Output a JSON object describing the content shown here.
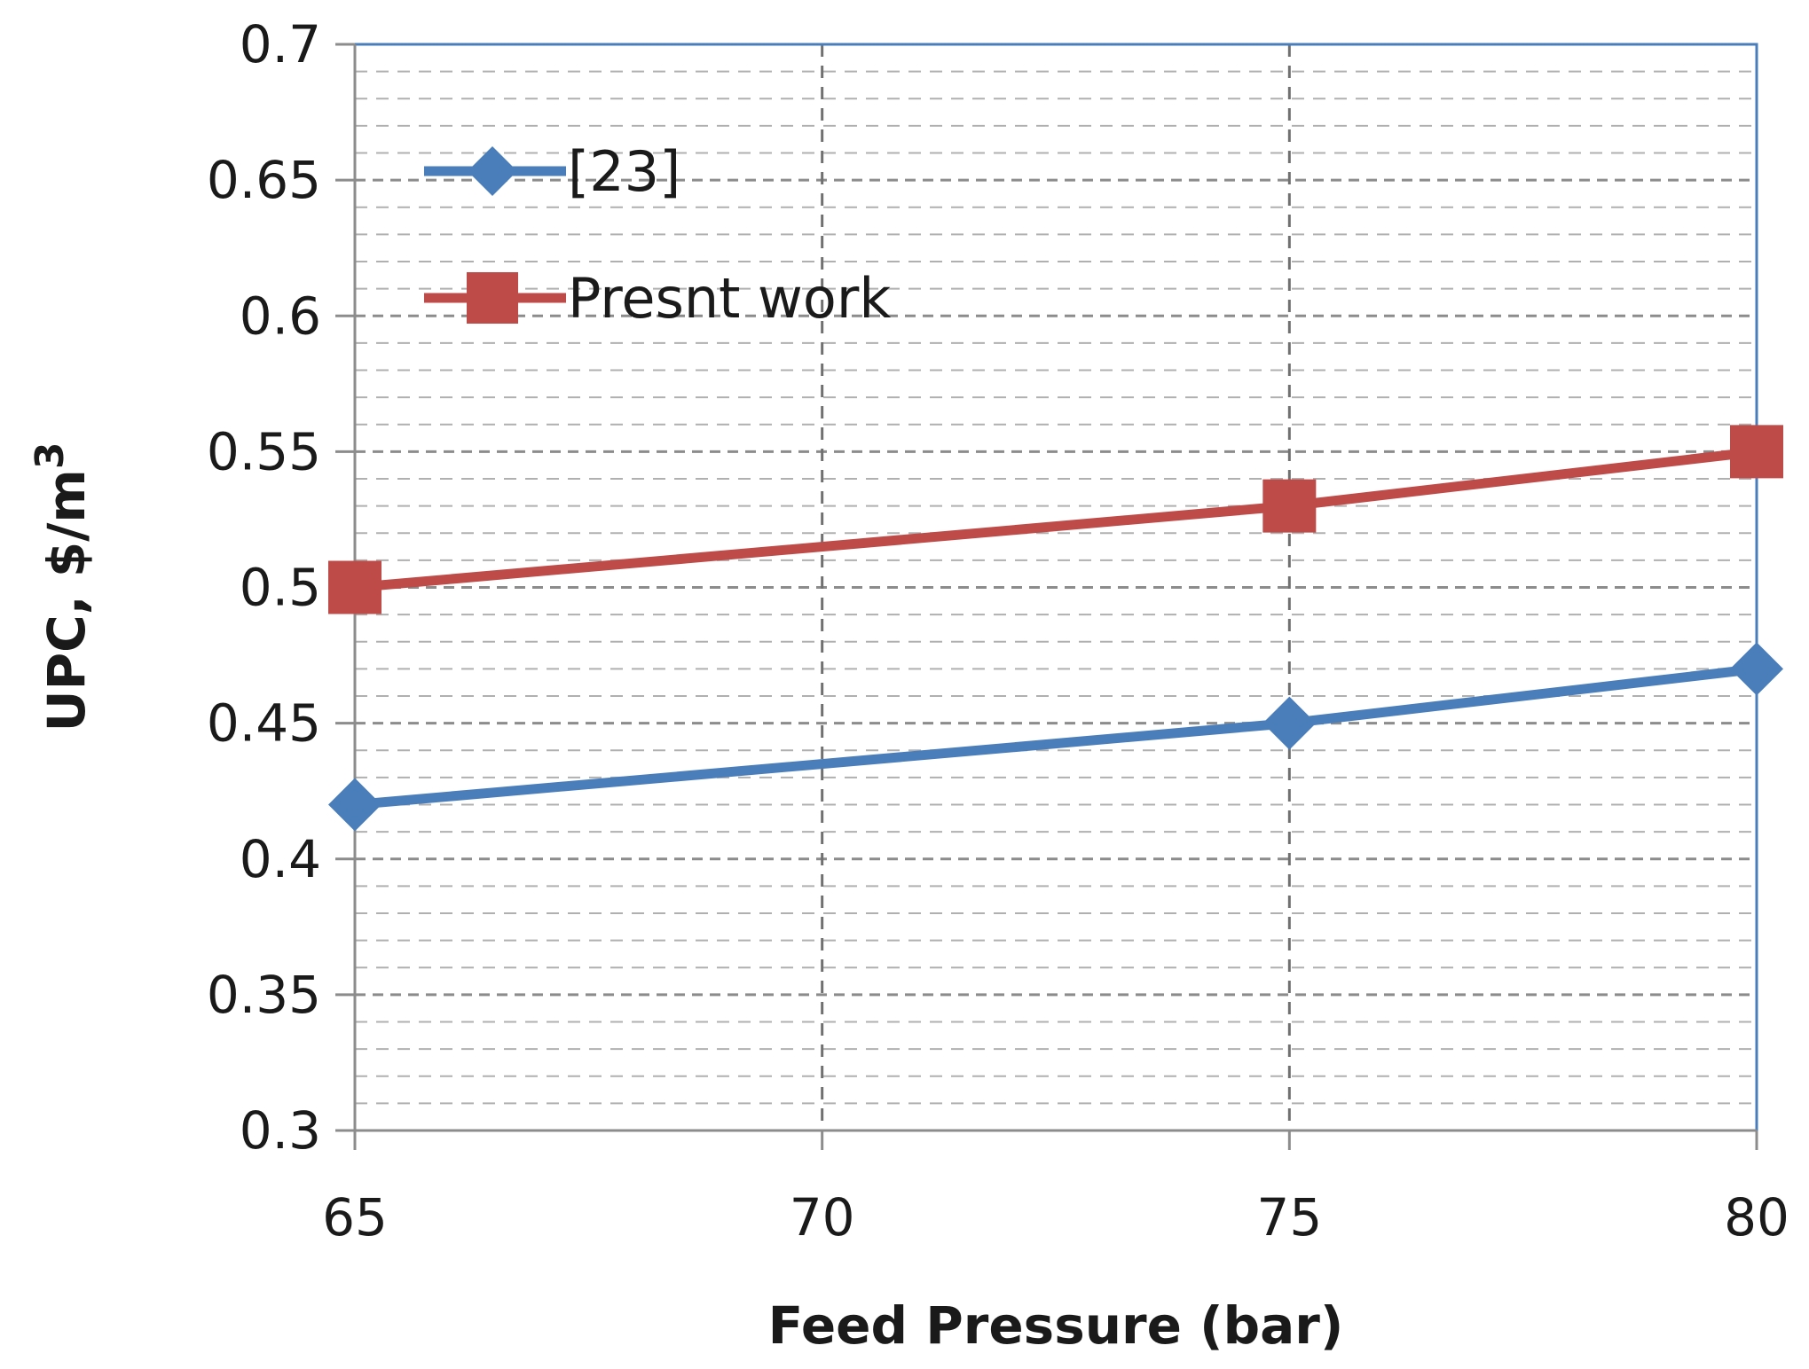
{
  "chart_data": {
    "type": "line",
    "title": "",
    "xlabel": "Feed Pressure (bar)",
    "ylabel": "UPC, $/m",
    "ylabel_superscript": "3",
    "x": [
      65,
      75,
      80
    ],
    "xlim": [
      65,
      80
    ],
    "ylim": [
      0.3,
      0.7
    ],
    "xticks": [
      "65",
      "70",
      "75",
      "80"
    ],
    "yticks": [
      "0.3",
      "0.35",
      "0.4",
      "0.45",
      "0.5",
      "0.55",
      "0.6",
      "0.65",
      "0.7"
    ],
    "grid": true,
    "legend_position": "top-left",
    "series": [
      {
        "name": "[23]",
        "marker": "diamond",
        "color": "#4a7ebb",
        "values": [
          0.42,
          0.45,
          0.47
        ]
      },
      {
        "name": "Presnt work",
        "marker": "square",
        "color": "#be4b48",
        "values": [
          0.5,
          0.53,
          0.55
        ]
      }
    ]
  }
}
